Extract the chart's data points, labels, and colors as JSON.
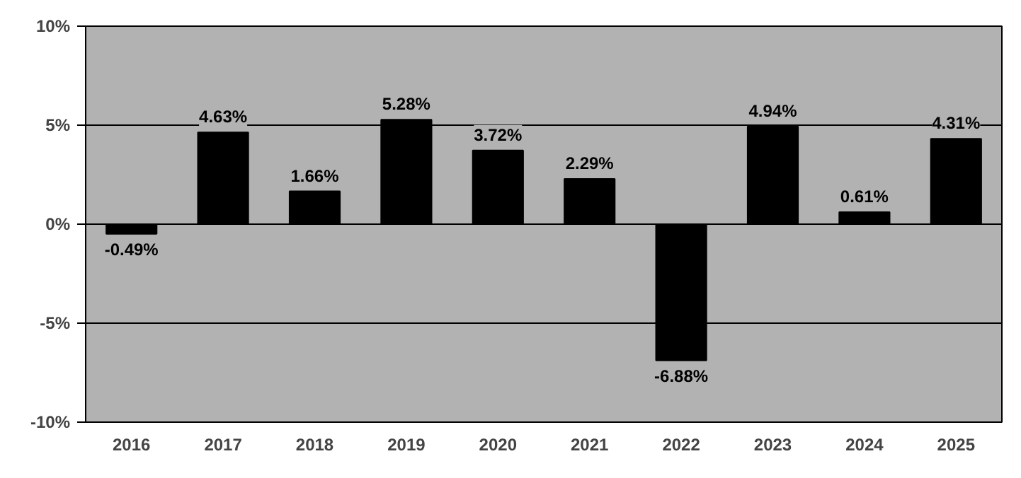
{
  "chart_data": {
    "type": "bar",
    "categories": [
      "2016",
      "2017",
      "2018",
      "2019",
      "2020",
      "2021",
      "2022",
      "2023",
      "2024",
      "2025"
    ],
    "series": [
      {
        "color": "#000000",
        "values": [
          -0.49,
          4.63,
          1.66,
          5.28,
          3.72,
          2.29,
          -6.88,
          4.94,
          0.61,
          4.31
        ]
      }
    ],
    "value_labels": [
      "-0.49%",
      "4.63%",
      "1.66%",
      "5.28%",
      "3.72%",
      "2.29%",
      "-6.88%",
      "4.94%",
      "0.61%",
      "4.31%"
    ],
    "ylim": [
      -10,
      10
    ],
    "yticks": [
      {
        "value": -10,
        "label": "-10%"
      },
      {
        "value": -5,
        "label": "-5%"
      },
      {
        "value": 0,
        "label": "0%"
      },
      {
        "value": 5,
        "label": "5%"
      },
      {
        "value": 10,
        "label": "10%"
      }
    ],
    "grid": "y"
  }
}
